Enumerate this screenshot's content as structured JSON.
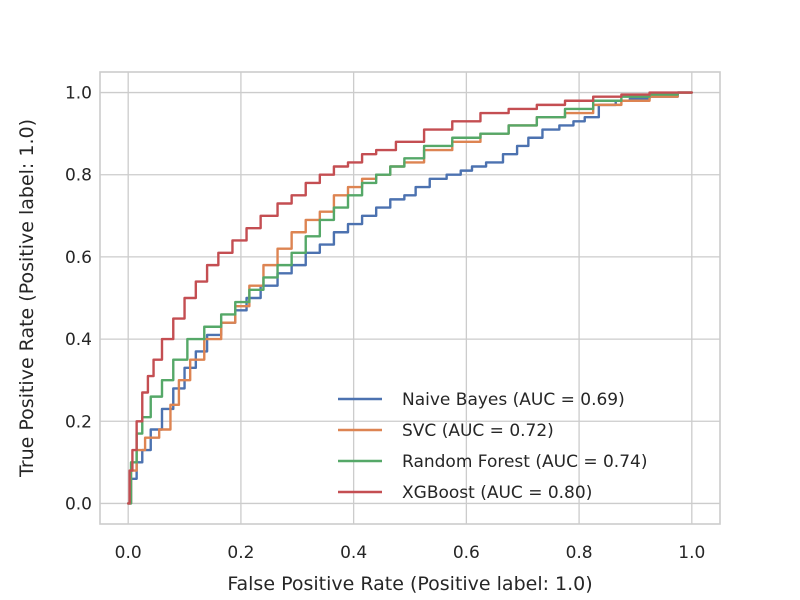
{
  "chart_data": {
    "type": "line",
    "title": "",
    "xlabel": "False Positive Rate (Positive label: 1.0)",
    "ylabel": "True Positive Rate (Positive label: 1.0)",
    "xlim": [
      -0.05,
      1.05
    ],
    "ylim": [
      -0.05,
      1.05
    ],
    "xticks": [
      0.0,
      0.2,
      0.4,
      0.6,
      0.8,
      1.0
    ],
    "yticks": [
      0.0,
      0.2,
      0.4,
      0.6,
      0.8,
      1.0
    ],
    "xtick_labels": [
      "0.0",
      "0.2",
      "0.4",
      "0.6",
      "0.8",
      "1.0"
    ],
    "ytick_labels": [
      "0.0",
      "0.2",
      "0.4",
      "0.6",
      "0.8",
      "1.0"
    ],
    "grid": true,
    "legend_position": "lower-right",
    "series": [
      {
        "name": "Naive Bayes (AUC = 0.69)",
        "color": "#4c72b0",
        "x": [
          0,
          0.01,
          0.02,
          0.03,
          0.05,
          0.07,
          0.09,
          0.11,
          0.13,
          0.15,
          0.18,
          0.2,
          0.22,
          0.25,
          0.28,
          0.3,
          0.33,
          0.35,
          0.38,
          0.4,
          0.43,
          0.45,
          0.48,
          0.5,
          0.52,
          0.55,
          0.58,
          0.6,
          0.62,
          0.65,
          0.68,
          0.7,
          0.72,
          0.75,
          0.78,
          0.8,
          0.82,
          0.85,
          0.88,
          0.9,
          0.95,
          1.0
        ],
        "y": [
          0,
          0.06,
          0.1,
          0.13,
          0.18,
          0.23,
          0.28,
          0.33,
          0.37,
          0.41,
          0.44,
          0.47,
          0.5,
          0.53,
          0.56,
          0.58,
          0.61,
          0.63,
          0.66,
          0.68,
          0.7,
          0.72,
          0.74,
          0.75,
          0.77,
          0.79,
          0.8,
          0.81,
          0.82,
          0.83,
          0.85,
          0.87,
          0.89,
          0.91,
          0.92,
          0.93,
          0.94,
          0.97,
          0.98,
          0.985,
          0.99,
          1.0
        ]
      },
      {
        "name": "SVC (AUC = 0.72)",
        "color": "#dd8452",
        "x": [
          0,
          0.01,
          0.02,
          0.04,
          0.07,
          0.08,
          0.1,
          0.12,
          0.15,
          0.18,
          0.2,
          0.23,
          0.25,
          0.28,
          0.3,
          0.33,
          0.35,
          0.38,
          0.4,
          0.43,
          0.45,
          0.48,
          0.5,
          0.55,
          0.6,
          0.65,
          0.7,
          0.75,
          0.8,
          0.85,
          0.9,
          0.95,
          1.0
        ],
        "y": [
          0,
          0.08,
          0.13,
          0.16,
          0.18,
          0.24,
          0.3,
          0.35,
          0.4,
          0.44,
          0.48,
          0.53,
          0.58,
          0.62,
          0.66,
          0.69,
          0.71,
          0.75,
          0.77,
          0.79,
          0.8,
          0.82,
          0.83,
          0.86,
          0.88,
          0.9,
          0.92,
          0.94,
          0.95,
          0.97,
          0.98,
          0.99,
          1.0
        ]
      },
      {
        "name": "Random Forest (AUC = 0.74)",
        "color": "#55a868",
        "x": [
          0,
          0.01,
          0.02,
          0.03,
          0.05,
          0.07,
          0.09,
          0.12,
          0.15,
          0.18,
          0.2,
          0.23,
          0.25,
          0.28,
          0.3,
          0.33,
          0.35,
          0.38,
          0.4,
          0.43,
          0.45,
          0.48,
          0.5,
          0.55,
          0.6,
          0.65,
          0.7,
          0.75,
          0.8,
          0.85,
          0.9,
          0.95,
          1.0
        ],
        "y": [
          0,
          0.1,
          0.17,
          0.21,
          0.26,
          0.3,
          0.35,
          0.4,
          0.43,
          0.46,
          0.49,
          0.52,
          0.55,
          0.58,
          0.61,
          0.65,
          0.69,
          0.72,
          0.75,
          0.78,
          0.8,
          0.82,
          0.84,
          0.87,
          0.89,
          0.9,
          0.92,
          0.94,
          0.96,
          0.98,
          0.99,
          0.995,
          1.0
        ]
      },
      {
        "name": "XGBoost (AUC = 0.80)",
        "color": "#c44e52",
        "x": [
          0,
          0.005,
          0.01,
          0.02,
          0.03,
          0.04,
          0.05,
          0.07,
          0.09,
          0.11,
          0.13,
          0.15,
          0.17,
          0.2,
          0.22,
          0.25,
          0.28,
          0.3,
          0.33,
          0.35,
          0.38,
          0.4,
          0.43,
          0.45,
          0.5,
          0.55,
          0.6,
          0.65,
          0.7,
          0.75,
          0.8,
          0.85,
          0.9,
          0.95,
          1.0
        ],
        "y": [
          0,
          0.08,
          0.13,
          0.2,
          0.27,
          0.31,
          0.35,
          0.4,
          0.45,
          0.5,
          0.54,
          0.58,
          0.61,
          0.64,
          0.67,
          0.7,
          0.73,
          0.75,
          0.78,
          0.8,
          0.82,
          0.83,
          0.85,
          0.86,
          0.88,
          0.91,
          0.93,
          0.95,
          0.96,
          0.97,
          0.98,
          0.99,
          0.995,
          1.0,
          1.0
        ]
      }
    ]
  }
}
